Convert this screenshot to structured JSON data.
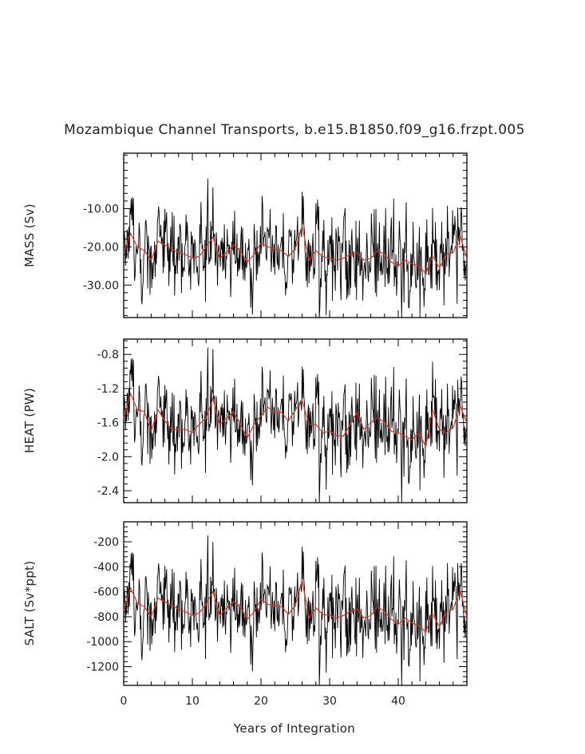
{
  "chart_data": {
    "type": "line",
    "title": "Mozambique Channel Transports, b.e15.B1850.f09_g16.frzpt.005",
    "xlabel": "Years of Integration",
    "xlim": [
      0,
      50
    ],
    "x_ticks": [
      0,
      10,
      20,
      30,
      40
    ],
    "colors": {
      "monthly": "#000000",
      "annual_mean": "#e0301e"
    },
    "panels": [
      {
        "id": "mass",
        "ylabel": "MASS (Sv)",
        "ylim": [
          -38.5,
          4.5
        ],
        "y_ticks": [
          -10.0,
          -20.0,
          -30.0
        ],
        "y_tick_labels": [
          "-10.00",
          "-20.00",
          "-30.00"
        ],
        "annual_mean": [
          -21.5,
          -16.5,
          -20.0,
          -21.0,
          -23.5,
          -18.5,
          -19.5,
          -20.5,
          -21.5,
          -22.0,
          -23.0,
          -22.5,
          -20.0,
          -17.5,
          -23.0,
          -21.5,
          -19.5,
          -21.0,
          -24.0,
          -22.0,
          -19.0,
          -20.0,
          -20.5,
          -21.0,
          -22.5,
          -20.5,
          -14.5,
          -23.5,
          -21.0,
          -22.5,
          -23.0,
          -23.5,
          -23.0,
          -22.0,
          -21.5,
          -23.5,
          -23.0,
          -21.0,
          -22.0,
          -24.0,
          -25.0,
          -23.5,
          -24.5,
          -25.0,
          -27.0,
          -22.5,
          -25.5,
          -22.0,
          -21.5,
          -17.0,
          -23.0
        ]
      },
      {
        "id": "heat",
        "ylabel": "HEAT (PW)",
        "ylim": [
          -2.54,
          -0.62
        ],
        "y_ticks": [
          -0.8,
          -1.2,
          -1.6,
          -2.0,
          -2.4
        ],
        "y_tick_labels": [
          "-0.8",
          "-1.2",
          "-1.6",
          "-2.0",
          "-2.4"
        ],
        "annual_mean": [
          -1.55,
          -1.26,
          -1.45,
          -1.47,
          -1.7,
          -1.45,
          -1.58,
          -1.68,
          -1.68,
          -1.68,
          -1.72,
          -1.62,
          -1.55,
          -1.32,
          -1.62,
          -1.55,
          -1.47,
          -1.62,
          -1.78,
          -1.62,
          -1.52,
          -1.42,
          -1.48,
          -1.48,
          -1.58,
          -1.45,
          -1.34,
          -1.62,
          -1.62,
          -1.72,
          -1.7,
          -1.75,
          -1.76,
          -1.62,
          -1.48,
          -1.68,
          -1.6,
          -1.54,
          -1.6,
          -1.7,
          -1.72,
          -1.76,
          -1.8,
          -1.72,
          -1.88,
          -1.45,
          -1.68,
          -1.72,
          -1.66,
          -1.4,
          -1.6
        ]
      },
      {
        "id": "salt",
        "ylabel": "SALT (Sv*ppt)",
        "ylim": [
          -1350,
          -40
        ],
        "y_ticks": [
          -200,
          -400,
          -600,
          -800,
          -1000,
          -1200
        ],
        "y_tick_labels": [
          "-200",
          "-400",
          "-600",
          "-800",
          "-1000",
          "-1200"
        ],
        "annual_mean": [
          -750,
          -570,
          -690,
          -720,
          -800,
          -650,
          -680,
          -710,
          -740,
          -760,
          -790,
          -770,
          -700,
          -600,
          -790,
          -730,
          -680,
          -720,
          -820,
          -760,
          -660,
          -700,
          -710,
          -720,
          -780,
          -710,
          -510,
          -810,
          -730,
          -780,
          -790,
          -810,
          -790,
          -760,
          -740,
          -810,
          -790,
          -720,
          -760,
          -820,
          -860,
          -810,
          -850,
          -870,
          -920,
          -780,
          -880,
          -760,
          -740,
          -590,
          -800
        ]
      }
    ]
  }
}
